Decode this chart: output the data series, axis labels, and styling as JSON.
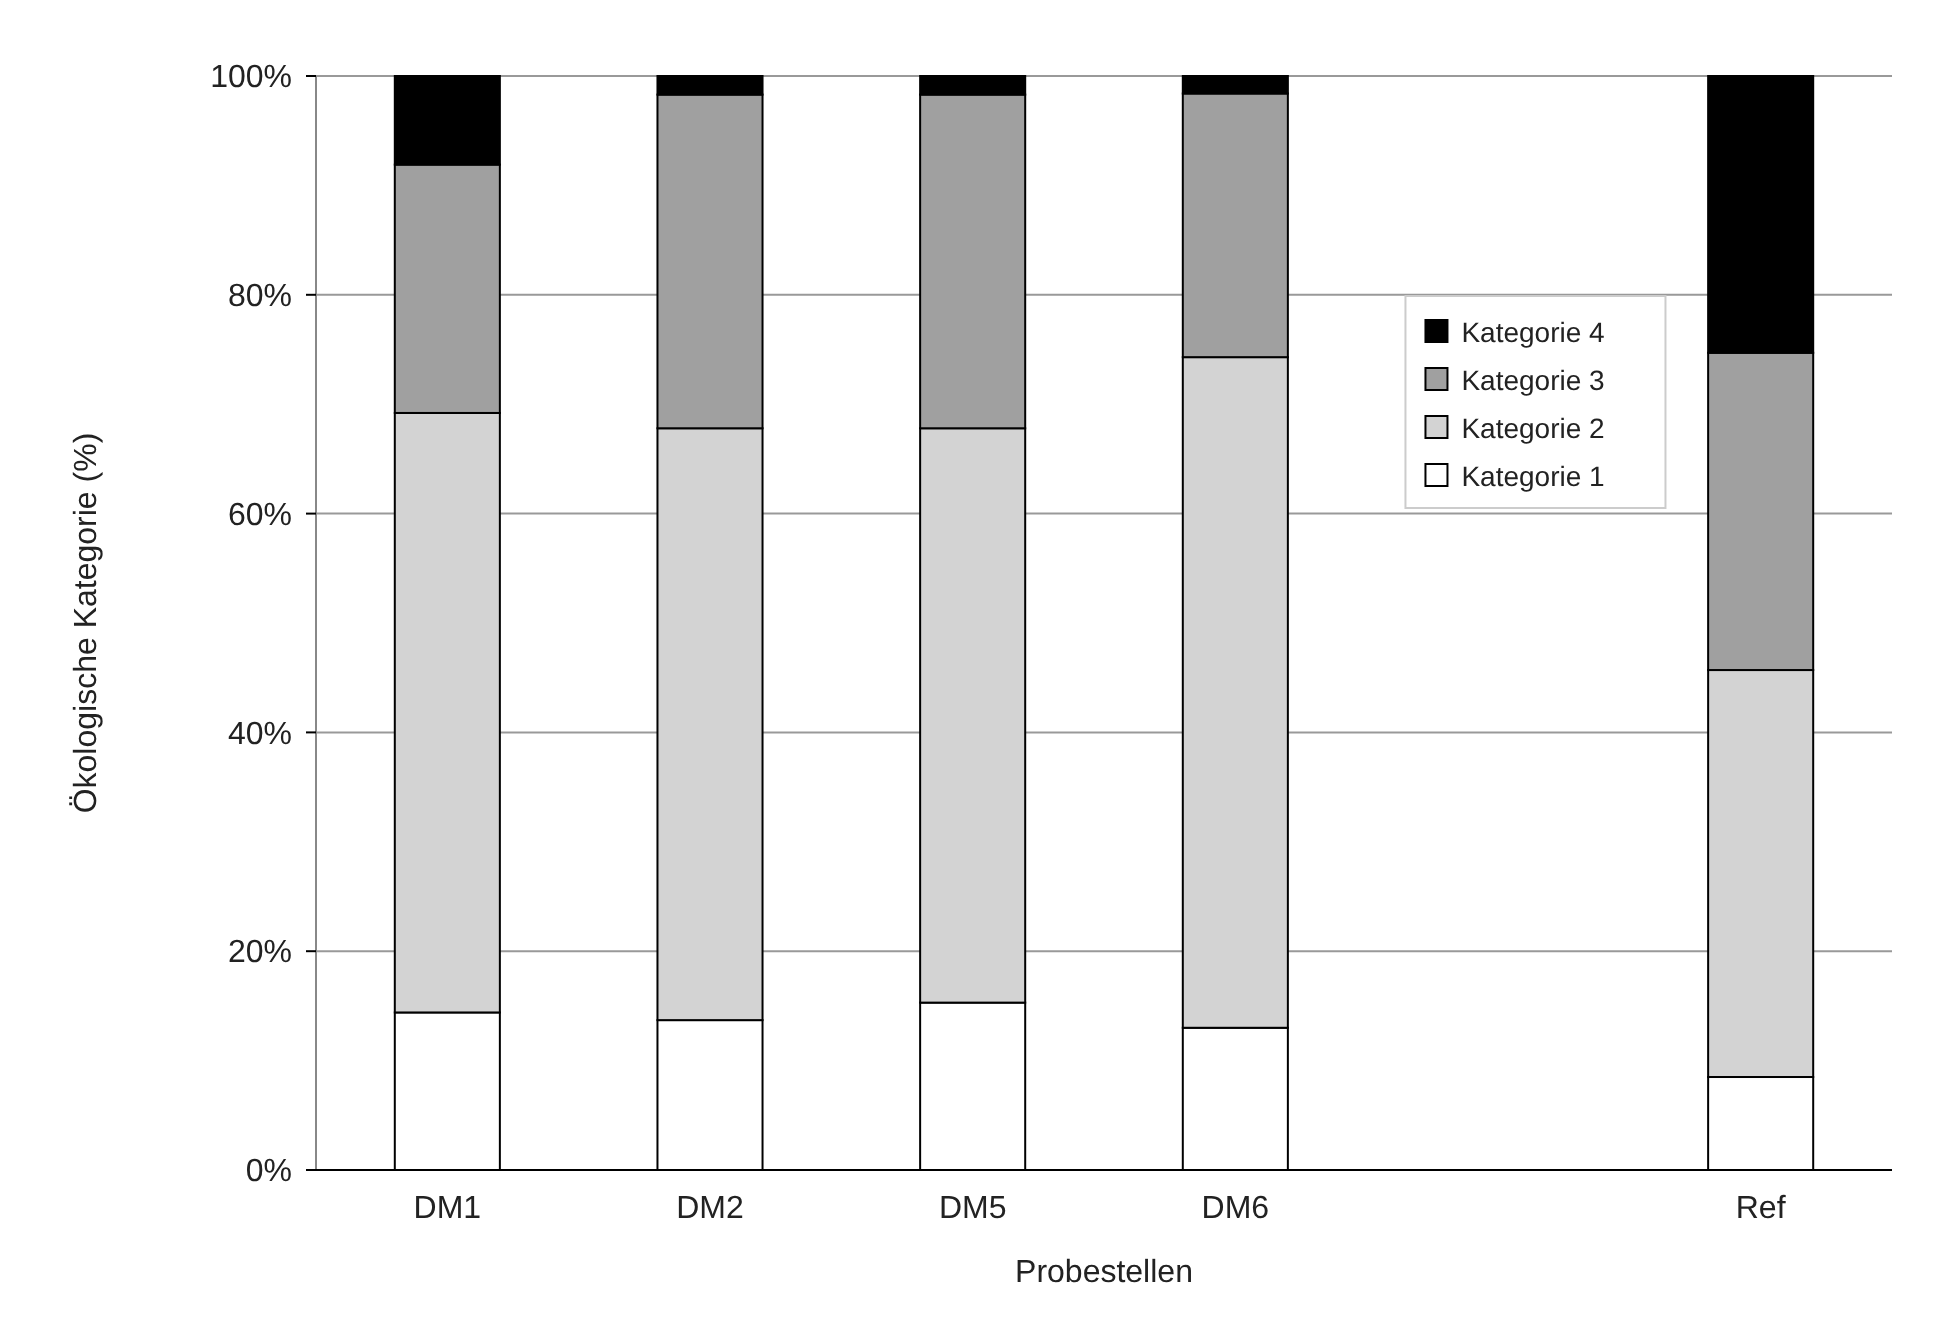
{
  "chart_data": {
    "type": "bar",
    "stacked": true,
    "xlabel": "Probestellen",
    "ylabel": "Ökologische Kategorie (%)",
    "categories": [
      "DM1",
      "DM2",
      "DM5",
      "DM6",
      null,
      "Ref"
    ],
    "series": [
      {
        "name": "Kategorie 1",
        "color": "#ffffff",
        "values": [
          14.4,
          13.7,
          15.3,
          13.0,
          null,
          8.5
        ]
      },
      {
        "name": "Kategorie 2",
        "color": "#d3d3d3",
        "values": [
          54.8,
          54.1,
          52.5,
          61.3,
          null,
          37.2
        ]
      },
      {
        "name": "Kategorie 3",
        "color": "#a0a0a0",
        "values": [
          22.7,
          30.5,
          30.5,
          24.1,
          null,
          29.0
        ]
      },
      {
        "name": "Kategorie 4",
        "color": "#000000",
        "values": [
          8.1,
          1.7,
          1.7,
          1.6,
          null,
          25.3
        ]
      }
    ],
    "ylim": [
      0,
      100
    ],
    "yticks": [
      {
        "value": 0,
        "label": "0%"
      },
      {
        "value": 20,
        "label": "20%"
      },
      {
        "value": 40,
        "label": "40%"
      },
      {
        "value": 60,
        "label": "60%"
      },
      {
        "value": 80,
        "label": "80%"
      },
      {
        "value": 100,
        "label": "100%"
      }
    ],
    "grid": "y",
    "legend": "right"
  }
}
